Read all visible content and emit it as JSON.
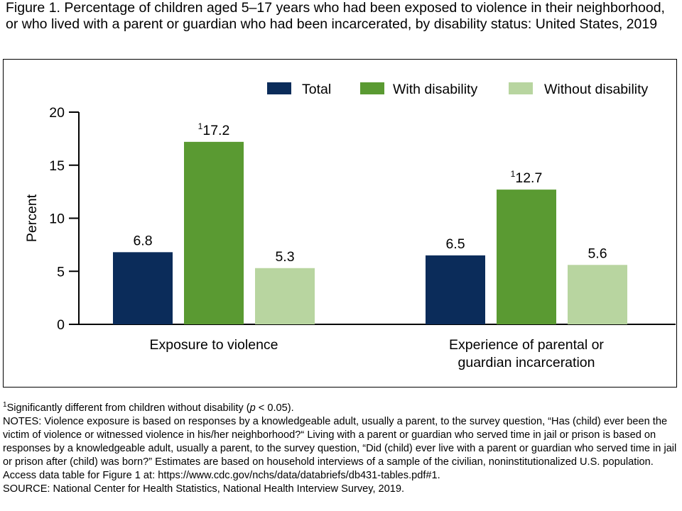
{
  "figure": {
    "title": "Figure 1. Percentage of children aged 5–17 years who had been exposed to violence in their neighborhood, or who lived with a parent or guardian who had been incarcerated, by disability status: United States, 2019"
  },
  "colors": {
    "Total": "#0b2c5a",
    "With disability": "#5a9a32",
    "Without disability": "#b8d5a0"
  },
  "chart_data": {
    "type": "bar",
    "title": "",
    "xlabel": "",
    "ylabel": "Percent",
    "ylim": [
      0,
      20
    ],
    "yticks": [
      0,
      5,
      10,
      15,
      20
    ],
    "grid": false,
    "legend_position": "top-right",
    "categories": [
      [
        "Exposure to violence"
      ],
      [
        "Experience of parental or",
        "guardian incarceration"
      ]
    ],
    "series": [
      {
        "name": "Total",
        "values": [
          6.8,
          6.5
        ],
        "labels": [
          "6.8",
          "6.5"
        ],
        "marks": [
          "",
          ""
        ]
      },
      {
        "name": "With disability",
        "values": [
          17.2,
          12.7
        ],
        "labels": [
          "17.2",
          "12.7"
        ],
        "marks": [
          "1",
          "1"
        ]
      },
      {
        "name": "Without disability",
        "values": [
          5.3,
          5.6
        ],
        "labels": [
          "5.3",
          "5.6"
        ],
        "marks": [
          "",
          ""
        ]
      }
    ]
  },
  "footnotes": {
    "sig_mark": "1",
    "sig_pre": "Significantly different from children without disability (",
    "sig_p": "p",
    "sig_post": " < 0.05).",
    "notes": "NOTES: Violence exposure is based on responses by a knowledgeable adult, usually a parent, to the survey question, “Has (child) ever been the victim of violence or witnessed violence in his/her neighborhood?“ Living with a parent or guardian who served time in jail or prison is based on responses by a knowledgeable adult, usually a parent, to the survey question, “Did (child) ever live with a parent or guardian who served time in jail or prison after (child) was born?” Estimates are based on household interviews of a sample of the civilian, noninstitutionalized U.S. population. Access data table for Figure 1 at: https://www.cdc.gov/nchs/data/databriefs/db431-tables.pdf#1.",
    "source": "SOURCE: National Center for Health Statistics, National Health Interview Survey, 2019."
  }
}
